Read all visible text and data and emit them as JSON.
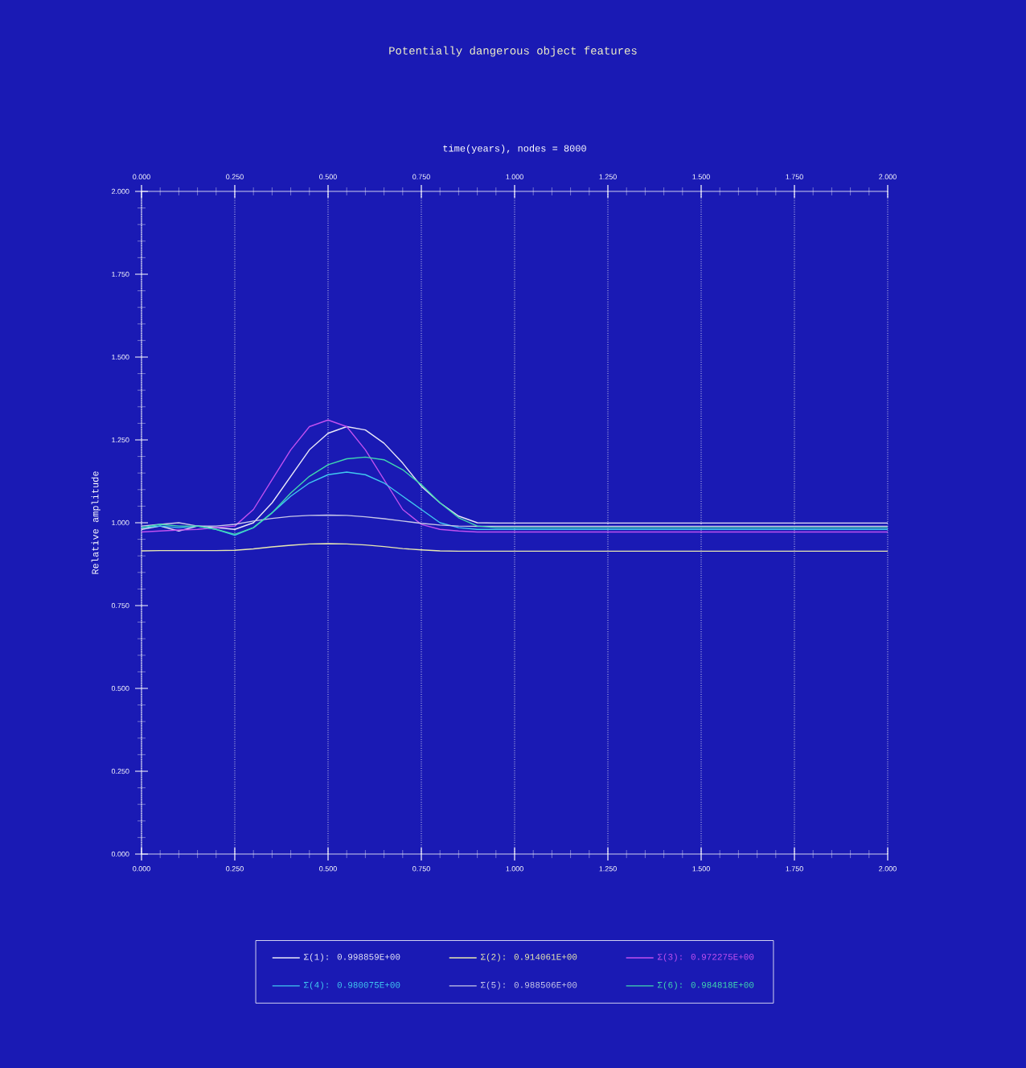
{
  "chart_data": {
    "type": "line",
    "title": "Potentially dangerous object features",
    "x2label": "time(years), nodes = 8000",
    "ylabel": "Relative amplitude",
    "xlim": [
      0,
      2
    ],
    "ylim": [
      0,
      2
    ],
    "x2lim": [
      0,
      2
    ],
    "xticks": [
      {
        "value": 0,
        "label": "0.000"
      },
      {
        "value": 0.25,
        "label": "0.250"
      },
      {
        "value": 0.5,
        "label": "0.500"
      },
      {
        "value": 0.75,
        "label": "0.750"
      },
      {
        "value": 1,
        "label": "1.000"
      },
      {
        "value": 1.25,
        "label": "1.250"
      },
      {
        "value": 1.5,
        "label": "1.500"
      },
      {
        "value": 1.75,
        "label": "1.750"
      },
      {
        "value": 2,
        "label": "2.000"
      }
    ],
    "x2ticks": [
      {
        "value": 0,
        "label": "0.000"
      },
      {
        "value": 0.25,
        "label": "0.250"
      },
      {
        "value": 0.5,
        "label": "0.500"
      },
      {
        "value": 0.75,
        "label": "0.750"
      },
      {
        "value": 1,
        "label": "1.000"
      },
      {
        "value": 1.25,
        "label": "1.250"
      },
      {
        "value": 1.5,
        "label": "1.500"
      },
      {
        "value": 1.75,
        "label": "1.750"
      },
      {
        "value": 2,
        "label": "2.000"
      }
    ],
    "yticks": [
      {
        "value": 0,
        "label": "0.000"
      },
      {
        "value": 0.25,
        "label": "0.250"
      },
      {
        "value": 0.5,
        "label": "0.500"
      },
      {
        "value": 0.75,
        "label": "0.750"
      },
      {
        "value": 1,
        "label": "1.000"
      },
      {
        "value": 1.25,
        "label": "1.250"
      },
      {
        "value": 1.5,
        "label": "1.500"
      },
      {
        "value": 1.75,
        "label": "1.750"
      },
      {
        "value": 2,
        "label": "2.000"
      }
    ],
    "grid": "x",
    "legend": "bottom",
    "marker": "none",
    "line_style": "solid",
    "x": [
      0,
      0.05,
      0.1,
      0.15,
      0.2,
      0.25,
      0.3,
      0.35,
      0.4,
      0.45,
      0.5,
      0.55,
      0.6,
      0.65,
      0.7,
      0.75,
      0.8,
      0.85,
      0.9,
      0.95,
      1.0,
      1.5,
      2.0
    ],
    "series": [
      {
        "name": "Σ(1): 0.998859E+00",
        "color": "#e8e8f8",
        "values": [
          0.98,
          0.99,
          0.975,
          0.99,
          0.985,
          0.98,
          1.0,
          1.06,
          1.14,
          1.22,
          1.27,
          1.29,
          1.28,
          1.24,
          1.18,
          1.11,
          1.06,
          1.02,
          1.0,
          0.999,
          0.999,
          0.999,
          0.999
        ]
      },
      {
        "name": "Σ(2): 0.914061E+00",
        "color": "#e8e8b0",
        "values": [
          0.915,
          0.916,
          0.916,
          0.916,
          0.916,
          0.917,
          0.921,
          0.927,
          0.932,
          0.936,
          0.937,
          0.936,
          0.933,
          0.928,
          0.922,
          0.918,
          0.915,
          0.914,
          0.914,
          0.914,
          0.914,
          0.914,
          0.914
        ]
      },
      {
        "name": "Σ(3): 0.972275E+00",
        "color": "#c050f0",
        "values": [
          0.972,
          0.975,
          0.978,
          0.98,
          0.985,
          0.99,
          1.04,
          1.13,
          1.22,
          1.29,
          1.31,
          1.29,
          1.22,
          1.13,
          1.04,
          0.995,
          0.98,
          0.975,
          0.972,
          0.972,
          0.972,
          0.972,
          0.972
        ]
      },
      {
        "name": "Σ(4): 0.980075E+00",
        "color": "#40c8f0",
        "values": [
          0.985,
          0.99,
          0.985,
          0.99,
          0.98,
          0.962,
          0.985,
          1.03,
          1.08,
          1.12,
          1.145,
          1.153,
          1.145,
          1.12,
          1.08,
          1.04,
          1.0,
          0.985,
          0.98,
          0.98,
          0.98,
          0.98,
          0.98
        ]
      },
      {
        "name": "Σ(5): 0.988506E+00",
        "color": "#c8c8e8",
        "values": [
          0.99,
          0.995,
          1.0,
          0.99,
          0.99,
          0.995,
          1.005,
          1.013,
          1.019,
          1.022,
          1.023,
          1.022,
          1.018,
          1.012,
          1.005,
          0.998,
          0.993,
          0.99,
          0.989,
          0.989,
          0.989,
          0.989,
          0.989
        ]
      },
      {
        "name": "Σ(6): 0.984818E+00",
        "color": "#40d8b0",
        "values": [
          0.985,
          0.995,
          0.99,
          0.99,
          0.98,
          0.965,
          0.985,
          1.03,
          1.09,
          1.14,
          1.175,
          1.193,
          1.198,
          1.19,
          1.16,
          1.115,
          1.06,
          1.015,
          0.99,
          0.985,
          0.985,
          0.985,
          0.985
        ]
      }
    ]
  }
}
